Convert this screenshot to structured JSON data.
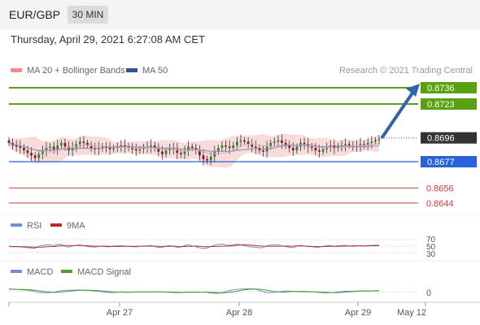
{
  "header": {
    "pair": "EUR/GBP",
    "timeframe": "30 MIN",
    "datetime": "Thursday, April 29, 2021 6:27:08 AM CET"
  },
  "colors": {
    "resistance": "#59a10e",
    "support": "#2962d9",
    "target_red": "#cc3b3b",
    "current": "#333333",
    "arrow": "#2f64a8",
    "bollinger": "#f7d5d5",
    "ma20": "#f0a5a5",
    "ma50": "#7c8cc6",
    "rsi": "#6f8fd9",
    "rsi_ma": "#c22a2a",
    "macd": "#6f8fd9",
    "macd_signal": "#4c9e2a"
  },
  "chart_data": {
    "type": "candlestick",
    "legend": [
      {
        "label": "MA 20 + Bollinger Bands",
        "color": "#f08c8c"
      },
      {
        "label": "MA 50",
        "color": "#2f5597"
      }
    ],
    "credit": "Research © 2021 Trading Central",
    "ylim": [
      0.863,
      0.875
    ],
    "current_price": 0.8696,
    "target_arrow": {
      "from": 0.8696,
      "to": 0.8736
    },
    "levels": [
      {
        "label": "0.8736",
        "value": 0.8736,
        "kind": "resistance"
      },
      {
        "label": "0.8723",
        "value": 0.8723,
        "kind": "resistance"
      },
      {
        "label": "0.8677",
        "value": 0.8677,
        "kind": "support"
      },
      {
        "label": "0.8656",
        "value": 0.8656,
        "kind": "red"
      },
      {
        "label": "0.8644",
        "value": 0.8644,
        "kind": "red"
      }
    ],
    "x_ticks": [
      "Apr 27",
      "Apr 28",
      "Apr 29",
      "May 12"
    ],
    "rsi": {
      "legend": [
        {
          "label": "RSI",
          "color": "#6f8fd9"
        },
        {
          "label": "9MA",
          "color": "#c22a2a"
        }
      ],
      "levels": [
        "70",
        "50",
        "30"
      ]
    },
    "macd": {
      "legend": [
        {
          "label": "MACD",
          "color": "#6f8fd9"
        },
        {
          "label": "MACD Signal",
          "color": "#4c9e2a"
        }
      ],
      "levels": [
        "0"
      ]
    },
    "close_path": [
      0.8692,
      0.869,
      0.8689,
      0.8688,
      0.8686,
      0.8684,
      0.8682,
      0.868,
      0.8683,
      0.8686,
      0.8688,
      0.8689,
      0.8687,
      0.869,
      0.8692,
      0.8689,
      0.8686,
      0.8688,
      0.8691,
      0.8693,
      0.8692,
      0.869,
      0.8688,
      0.8687,
      0.8688,
      0.8689,
      0.8688,
      0.8687,
      0.8688,
      0.8689,
      0.869,
      0.8689,
      0.8688,
      0.8687,
      0.8686,
      0.8687,
      0.8688,
      0.8689,
      0.869,
      0.8688,
      0.8685,
      0.8683,
      0.8686,
      0.8688,
      0.8687,
      0.8684,
      0.8683,
      0.8686,
      0.8689,
      0.8688,
      0.8686,
      0.8682,
      0.8679,
      0.8678,
      0.8681,
      0.8685,
      0.8688,
      0.869,
      0.8689,
      0.8688,
      0.869,
      0.8693,
      0.8694,
      0.8693,
      0.8691,
      0.8689,
      0.8688,
      0.8686,
      0.8685,
      0.8689,
      0.8692,
      0.8693,
      0.8694,
      0.8692,
      0.869,
      0.8688,
      0.8686,
      0.8689,
      0.8692,
      0.8691,
      0.8689,
      0.8688,
      0.8686,
      0.8685,
      0.8687,
      0.8689,
      0.869,
      0.8688,
      0.8689,
      0.869,
      0.8691,
      0.869,
      0.8689,
      0.869,
      0.8691,
      0.869,
      0.8692,
      0.8693,
      0.8694,
      0.8695
    ]
  }
}
